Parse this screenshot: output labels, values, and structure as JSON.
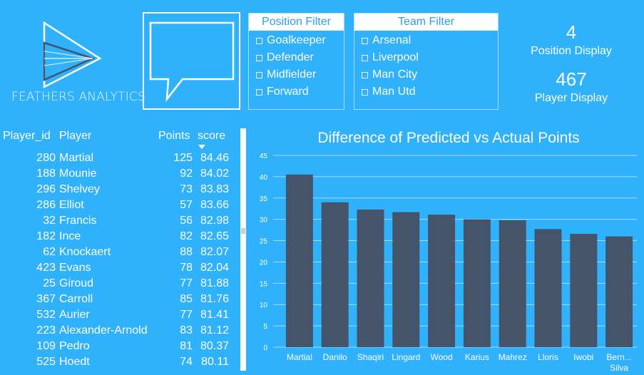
{
  "logo": {
    "text": "FEATHERS ANALYTICS"
  },
  "position_filter": {
    "title": "Position Filter",
    "items": [
      "Goalkeeper",
      "Defender",
      "Midfielder",
      "Forward"
    ]
  },
  "team_filter": {
    "title": "Team Filter",
    "items": [
      "Arsenal",
      "Liverpool",
      "Man City",
      "Man Utd"
    ]
  },
  "kpis": {
    "position_value": "4",
    "position_label": "Position Display",
    "player_value": "467",
    "player_label": "Player Display"
  },
  "table": {
    "headers": {
      "id": "Player_id",
      "player": "Player",
      "points": "Points",
      "score": "score"
    },
    "rows": [
      {
        "id": "280",
        "player": "Martial",
        "points": "125",
        "score": "84.46"
      },
      {
        "id": "188",
        "player": "Mounie",
        "points": "92",
        "score": "84.02"
      },
      {
        "id": "296",
        "player": "Shelvey",
        "points": "73",
        "score": "83.83"
      },
      {
        "id": "286",
        "player": "Elliot",
        "points": "57",
        "score": "83.66"
      },
      {
        "id": "32",
        "player": "Francis",
        "points": "56",
        "score": "82.98"
      },
      {
        "id": "182",
        "player": "Ince",
        "points": "82",
        "score": "82.65"
      },
      {
        "id": "62",
        "player": "Knockaert",
        "points": "88",
        "score": "82.07"
      },
      {
        "id": "423",
        "player": "Evans",
        "points": "78",
        "score": "82.04"
      },
      {
        "id": "25",
        "player": "Giroud",
        "points": "77",
        "score": "81.88"
      },
      {
        "id": "367",
        "player": "Carroll",
        "points": "85",
        "score": "81.76"
      },
      {
        "id": "532",
        "player": "Aurier",
        "points": "77",
        "score": "81.41"
      },
      {
        "id": "223",
        "player": "Alexander-Arnold",
        "points": "83",
        "score": "81.12"
      },
      {
        "id": "109",
        "player": "Pedro",
        "points": "81",
        "score": "80.37"
      },
      {
        "id": "525",
        "player": "Hoedt",
        "points": "74",
        "score": "80.11"
      }
    ]
  },
  "chart_data": {
    "type": "bar",
    "title": "Difference of Predicted vs Actual Points",
    "categories": [
      "Martial",
      "Danilo",
      "Shaqiri",
      "Lingard",
      "Wood",
      "Karius",
      "Mahrez",
      "Lloris",
      "Iwobi",
      "Bern... Silva"
    ],
    "values": [
      40.5,
      34.0,
      32.3,
      31.7,
      31.1,
      30.0,
      29.8,
      27.7,
      26.6,
      26.0
    ],
    "yticks": [
      0,
      5,
      10,
      15,
      20,
      25,
      30,
      35,
      40,
      45
    ],
    "ylim": [
      0,
      45
    ],
    "grid": true,
    "bar_color": "#44546a"
  },
  "colors": {
    "background": "#2fb2fb",
    "bar": "#44546a",
    "text": "#ffffff"
  }
}
